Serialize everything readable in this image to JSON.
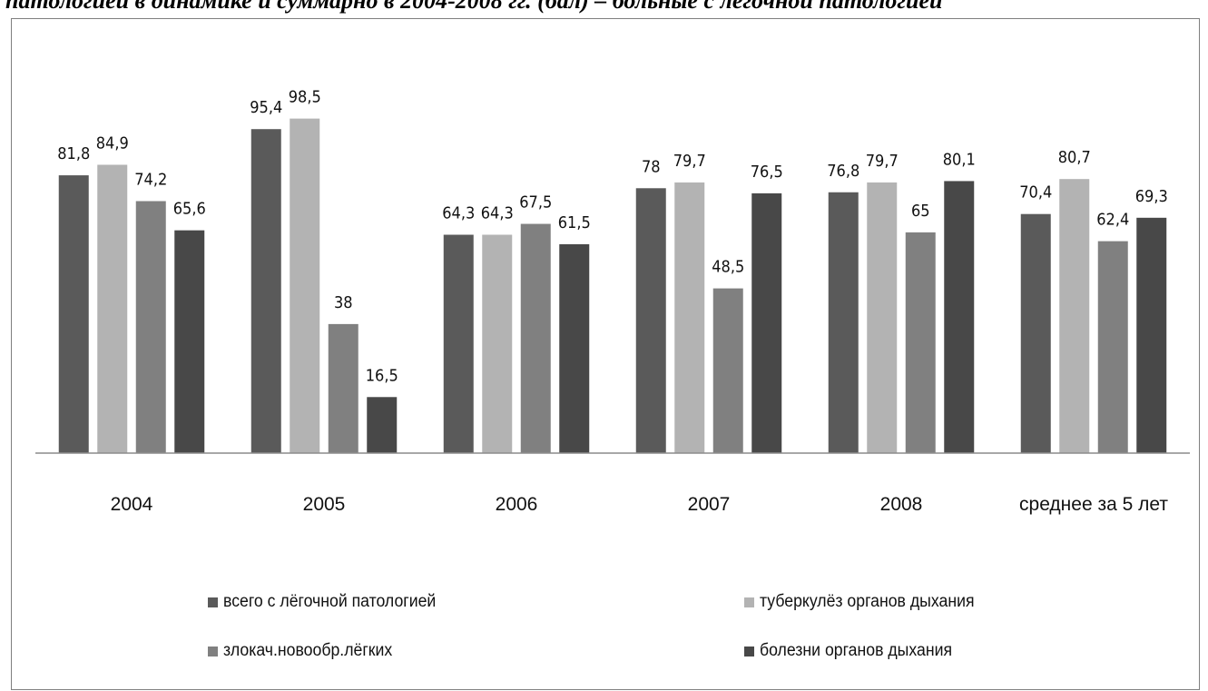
{
  "caption": "патологией в динамике и суммарно в 2004-2008 гг. (бал) – больные с лёгочной патологией",
  "chart_data": {
    "type": "bar",
    "categories": [
      "2004",
      "2005",
      "2006",
      "2007",
      "2008",
      "среднее за 5 лет"
    ],
    "series": [
      {
        "name": "всего с лёгочной патологией",
        "values": [
          81.8,
          95.4,
          64.3,
          78,
          76.8,
          70.4
        ],
        "labels": [
          "81,8",
          "95,4",
          "64,3",
          "78",
          "76,8",
          "70,4"
        ],
        "color": "#5a5a5a"
      },
      {
        "name": "туберкулёз органов дыхания",
        "values": [
          84.9,
          98.5,
          64.3,
          79.7,
          79.7,
          80.7
        ],
        "labels": [
          "84,9",
          "98,5",
          "64,3",
          "79,7",
          "79,7",
          "80,7"
        ],
        "color": "#b3b3b3"
      },
      {
        "name": "злокач.новообр.лёгких",
        "values": [
          74.2,
          38,
          67.5,
          48.5,
          65,
          62.4
        ],
        "labels": [
          "74,2",
          "38",
          "67,5",
          "48,5",
          "65",
          "62,4"
        ],
        "color": "#808080"
      },
      {
        "name": "болезни органов дыхания",
        "values": [
          65.6,
          16.5,
          61.5,
          76.5,
          80.1,
          69.3
        ],
        "labels": [
          "65,6",
          "16,5",
          "61,5",
          "76,5",
          "80,1",
          "69,3"
        ],
        "color": "#484848"
      }
    ],
    "ylim": [
      0,
      100
    ],
    "grid": false,
    "legend_position": "bottom",
    "axis_color": "#8c8c8c"
  }
}
